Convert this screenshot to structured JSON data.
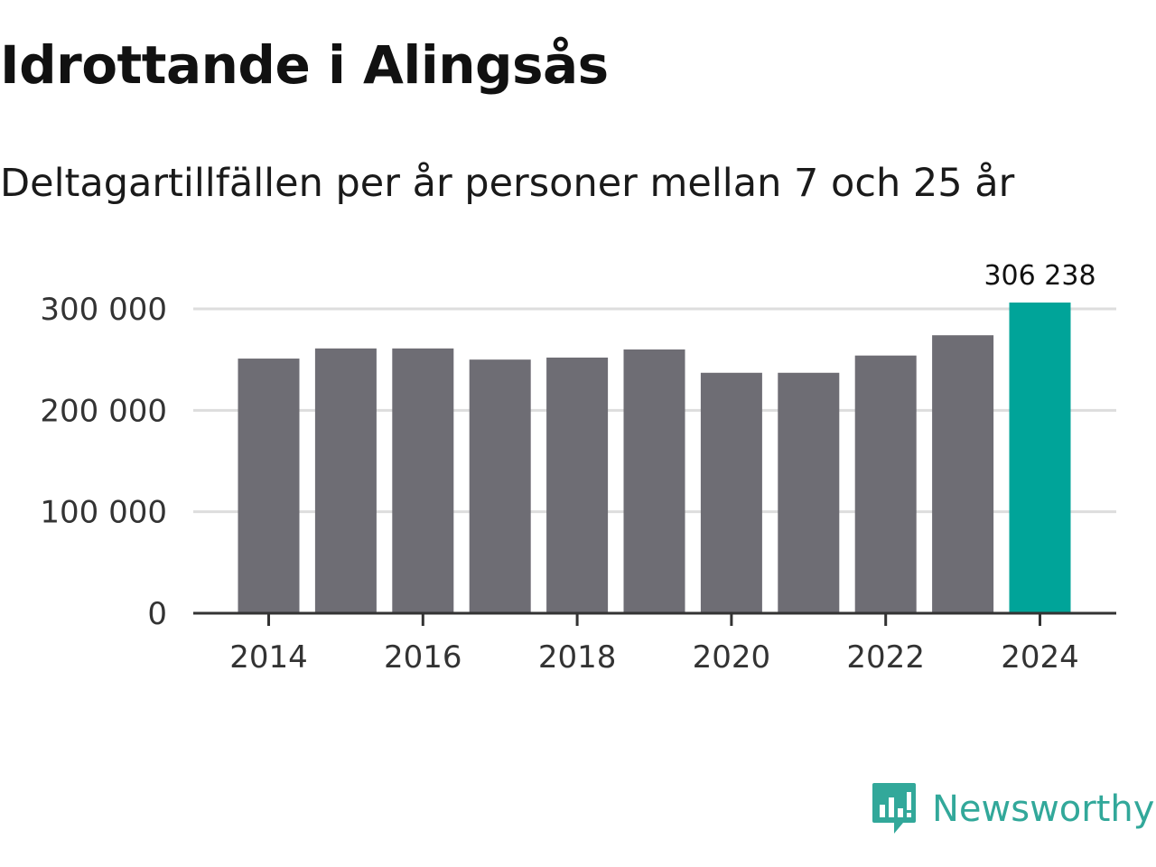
{
  "chart_data": {
    "type": "bar",
    "title": "Idrottande i Alingsås",
    "subtitle": "Deltagartillfällen per år personer mellan 7 och 25 år",
    "categories": [
      "2014",
      "2015",
      "2016",
      "2017",
      "2018",
      "2019",
      "2020",
      "2021",
      "2022",
      "2023",
      "2024"
    ],
    "values": [
      251000,
      261000,
      261000,
      250000,
      252000,
      260000,
      237000,
      237000,
      254000,
      274000,
      306238
    ],
    "x_tick_labels": [
      "2014",
      "2016",
      "2018",
      "2020",
      "2022",
      "2024"
    ],
    "y_ticks": [
      0,
      100000,
      200000,
      300000
    ],
    "y_tick_labels": [
      "0",
      "100 000",
      "200 000",
      "300 000"
    ],
    "ylim": [
      0,
      320000
    ],
    "highlight_index": 10,
    "highlight_label": "306 238",
    "colors": {
      "bar": "#6e6d74",
      "highlight": "#00a499",
      "grid": "#dddddd",
      "axis": "#333333"
    },
    "grid": true,
    "xlabel": "",
    "ylabel": ""
  },
  "brand": {
    "name": "Newsworthy",
    "icon": "newsworthy-logo-icon",
    "color": "#32a89a"
  }
}
